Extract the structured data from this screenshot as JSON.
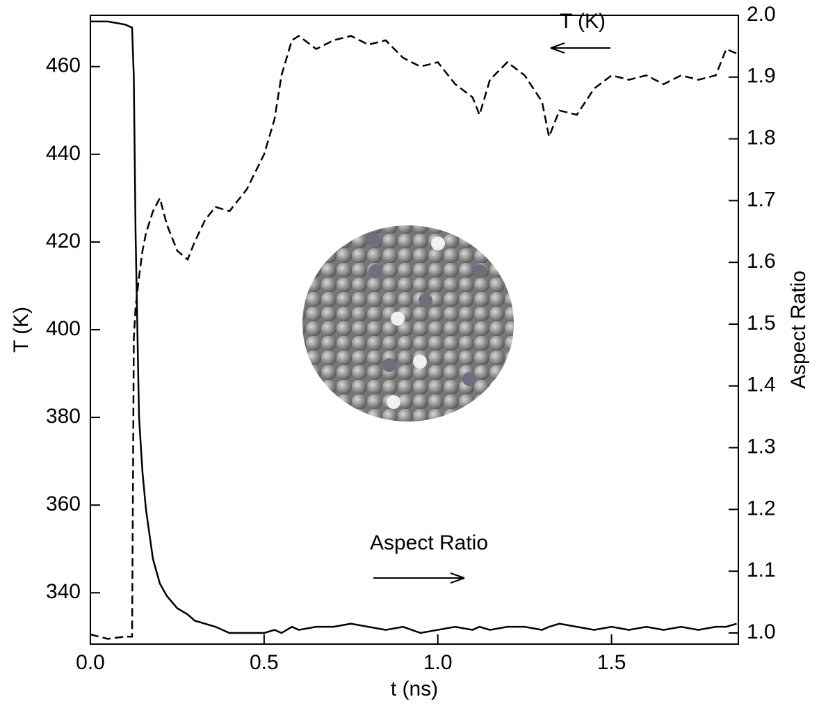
{
  "chart_data": {
    "type": "line",
    "x_label": "t (ns)",
    "y_label": "T (K)",
    "y2_label": "Aspect Ratio",
    "annotations": [
      "T (K)",
      "Aspect Ratio"
    ],
    "x": [
      0,
      0.05,
      0.1,
      0.12,
      0.125,
      0.13,
      0.14,
      0.15,
      0.16,
      0.18,
      0.2,
      0.22,
      0.25,
      0.28,
      0.3,
      0.33,
      0.36,
      0.4,
      0.45,
      0.5,
      0.53,
      0.55,
      0.58,
      0.6,
      0.65,
      0.7,
      0.75,
      0.8,
      0.85,
      0.9,
      0.95,
      1.0,
      1.05,
      1.1,
      1.12,
      1.15,
      1.2,
      1.25,
      1.3,
      1.32,
      1.35,
      1.4,
      1.45,
      1.5,
      1.55,
      1.6,
      1.65,
      1.7,
      1.75,
      1.8,
      1.83,
      1.86
    ],
    "series": [
      {
        "name": "T (K)",
        "color": "#000000",
        "dashed": true,
        "values": [
          330.5,
          329.5,
          330,
          330,
          398,
          405,
          412,
          418,
          422,
          427,
          430,
          424,
          418,
          416,
          420,
          425,
          428,
          427,
          432,
          440,
          448,
          458,
          466,
          467,
          464,
          466,
          467,
          465,
          466,
          462,
          460,
          461,
          456,
          453,
          449,
          457,
          461,
          458,
          452,
          444,
          450,
          449,
          455,
          458,
          457,
          458,
          456,
          458,
          457,
          458,
          464,
          463
        ]
      },
      {
        "name": "Aspect Ratio",
        "color": "#000000",
        "dashed": false,
        "axis": "y2",
        "values": [
          1.99,
          1.99,
          1.985,
          1.98,
          1.9,
          1.65,
          1.35,
          1.26,
          1.2,
          1.12,
          1.08,
          1.06,
          1.04,
          1.03,
          1.02,
          1.015,
          1.01,
          1.0,
          1.0,
          1.0,
          1.005,
          1.0,
          1.01,
          1.005,
          1.01,
          1.01,
          1.015,
          1.01,
          1.005,
          1.01,
          1.0,
          1.005,
          1.01,
          1.005,
          1.01,
          1.005,
          1.01,
          1.01,
          1.005,
          1.01,
          1.015,
          1.01,
          1.005,
          1.01,
          1.005,
          1.01,
          1.005,
          1.01,
          1.005,
          1.01,
          1.01,
          1.015
        ]
      }
    ],
    "xlim": [
      0,
      1.865
    ],
    "xticks": [
      {
        "value": 0,
        "label": "0.0"
      },
      0.5,
      {
        "value": 1,
        "label": "1.0"
      },
      1.5
    ],
    "ylim": [
      328.3,
      471.7
    ],
    "yticks": [
      340,
      360,
      380,
      400,
      420,
      440,
      460
    ],
    "y2lim": [
      0.982,
      2.0
    ],
    "y2ticks": [
      {
        "value": 1,
        "label": "1.0"
      },
      1.1,
      1.2,
      1.3,
      1.4,
      1.5,
      1.6,
      1.7,
      1.8,
      1.9,
      {
        "value": 2,
        "label": "2.0"
      }
    ]
  }
}
